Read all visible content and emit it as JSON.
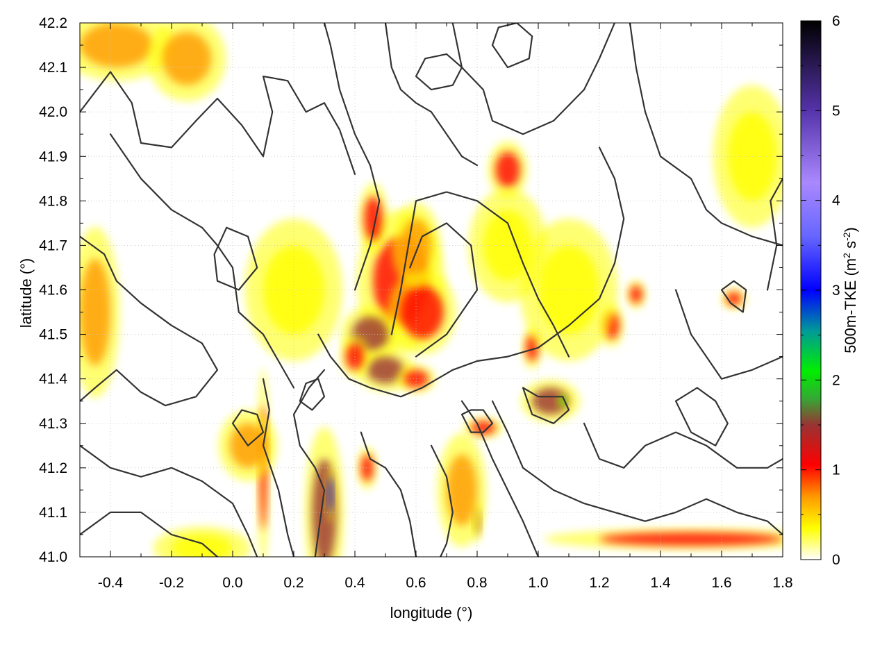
{
  "chart_data": {
    "type": "heatmap",
    "title": "",
    "xlabel": "longitude (°)",
    "ylabel": "latitude (°)",
    "xlim": [
      -0.5,
      1.8
    ],
    "ylim": [
      41.0,
      42.2
    ],
    "x_ticks": [
      -0.4,
      -0.2,
      0.0,
      0.2,
      0.4,
      0.6,
      0.8,
      1.0,
      1.2,
      1.4,
      1.6,
      1.8
    ],
    "x_tick_labels": [
      "-0.4",
      "-0.2",
      "0.0",
      "0.2",
      "0.4",
      "0.6",
      "0.8",
      "1.0",
      "1.2",
      "1.4",
      "1.6",
      "1.8"
    ],
    "y_ticks": [
      41.0,
      41.1,
      41.2,
      41.3,
      41.4,
      41.5,
      41.6,
      41.7,
      41.8,
      41.9,
      42.0,
      42.1,
      42.2
    ],
    "y_tick_labels": [
      "41.0",
      "41.1",
      "41.2",
      "41.3",
      "41.4",
      "41.5",
      "41.6",
      "41.7",
      "41.8",
      "41.9",
      "42.0",
      "42.1",
      "42.2"
    ],
    "grid": true,
    "colorbar": {
      "label": "500m-TKE (m² s⁻²)",
      "label_main": "500m-TKE (m",
      "label_sup1": "2",
      "label_mid": " s",
      "label_sup2": "-2",
      "label_end": ")",
      "range": [
        0,
        6
      ],
      "ticks": [
        0,
        1,
        2,
        3,
        4,
        5,
        6
      ],
      "tick_labels": [
        "0",
        "1",
        "2",
        "3",
        "4",
        "5",
        "6"
      ],
      "color_stops": [
        {
          "value": 0.0,
          "color": "#ffffff"
        },
        {
          "value": 0.35,
          "color": "#ffff00"
        },
        {
          "value": 0.7,
          "color": "#ff9900"
        },
        {
          "value": 1.05,
          "color": "#ff0000"
        },
        {
          "value": 1.5,
          "color": "#993333"
        },
        {
          "value": 1.8,
          "color": "#33aa33"
        },
        {
          "value": 2.1,
          "color": "#00ee00"
        },
        {
          "value": 2.55,
          "color": "#009999"
        },
        {
          "value": 3.0,
          "color": "#0000ff"
        },
        {
          "value": 3.6,
          "color": "#6666ff"
        },
        {
          "value": 4.2,
          "color": "#aa88ff"
        },
        {
          "value": 5.0,
          "color": "#5533aa"
        },
        {
          "value": 6.0,
          "color": "#000000"
        }
      ]
    },
    "hotspots": [
      {
        "lon": 0.55,
        "lat": 41.62,
        "tke": 1.0,
        "rx": 0.09,
        "ry": 0.1
      },
      {
        "lon": 0.62,
        "lat": 41.55,
        "tke": 0.9,
        "rx": 0.07,
        "ry": 0.06
      },
      {
        "lon": 0.45,
        "lat": 41.5,
        "tke": 1.1,
        "rx": 0.06,
        "ry": 0.04
      },
      {
        "lon": 0.5,
        "lat": 41.42,
        "tke": 1.2,
        "rx": 0.06,
        "ry": 0.03
      },
      {
        "lon": 0.6,
        "lat": 41.4,
        "tke": 1.0,
        "rx": 0.04,
        "ry": 0.02
      },
      {
        "lon": 0.4,
        "lat": 41.45,
        "tke": 1.0,
        "rx": 0.03,
        "ry": 0.03
      },
      {
        "lon": 0.3,
        "lat": 41.1,
        "tke": 1.4,
        "rx": 0.04,
        "ry": 0.12
      },
      {
        "lon": 0.32,
        "lat": 41.14,
        "tke": 3.0,
        "rx": 0.008,
        "ry": 0.04
      },
      {
        "lon": 0.1,
        "lat": 41.2,
        "tke": 1.0,
        "rx": 0.012,
        "ry": 0.14
      },
      {
        "lon": 0.44,
        "lat": 41.2,
        "tke": 0.9,
        "rx": 0.02,
        "ry": 0.03
      },
      {
        "lon": 1.04,
        "lat": 41.35,
        "tke": 1.3,
        "rx": 0.06,
        "ry": 0.03
      },
      {
        "lon": 1.08,
        "lat": 41.35,
        "tke": 1.9,
        "rx": 0.01,
        "ry": 0.01
      },
      {
        "lon": 0.98,
        "lat": 41.47,
        "tke": 1.0,
        "rx": 0.02,
        "ry": 0.03
      },
      {
        "lon": 1.24,
        "lat": 41.52,
        "tke": 1.0,
        "rx": 0.025,
        "ry": 0.03
      },
      {
        "lon": 1.32,
        "lat": 41.59,
        "tke": 1.0,
        "rx": 0.02,
        "ry": 0.02
      },
      {
        "lon": 1.64,
        "lat": 41.58,
        "tke": 1.0,
        "rx": 0.025,
        "ry": 0.015
      },
      {
        "lon": 0.82,
        "lat": 41.29,
        "tke": 1.0,
        "rx": 0.04,
        "ry": 0.015
      },
      {
        "lon": 0.8,
        "lat": 41.08,
        "tke": 1.2,
        "rx": 0.01,
        "ry": 0.03
      },
      {
        "lon": 0.9,
        "lat": 41.87,
        "tke": 1.0,
        "rx": 0.04,
        "ry": 0.04
      },
      {
        "lon": 0.46,
        "lat": 41.76,
        "tke": 0.8,
        "rx": 0.03,
        "ry": 0.05
      },
      {
        "lon": 0.6,
        "lat": 41.7,
        "tke": 0.7,
        "rx": 0.05,
        "ry": 0.06
      },
      {
        "lon": 1.5,
        "lat": 41.04,
        "tke": 0.9,
        "rx": 0.3,
        "ry": 0.015
      },
      {
        "lon": -0.38,
        "lat": 42.15,
        "tke": 0.5,
        "rx": 0.12,
        "ry": 0.05
      },
      {
        "lon": -0.15,
        "lat": 42.12,
        "tke": 0.4,
        "rx": 0.08,
        "ry": 0.06
      },
      {
        "lon": -0.45,
        "lat": 41.55,
        "tke": 0.4,
        "rx": 0.05,
        "ry": 0.12
      },
      {
        "lon": 0.05,
        "lat": 41.25,
        "tke": 0.6,
        "rx": 0.06,
        "ry": 0.05
      },
      {
        "lon": -0.1,
        "lat": 41.02,
        "tke": 0.35,
        "rx": 0.1,
        "ry": 0.03
      },
      {
        "lon": 1.1,
        "lat": 41.6,
        "tke": 0.35,
        "rx": 0.1,
        "ry": 0.1
      },
      {
        "lon": 0.75,
        "lat": 41.15,
        "tke": 0.4,
        "rx": 0.05,
        "ry": 0.08
      },
      {
        "lon": 0.2,
        "lat": 41.6,
        "tke": 0.3,
        "rx": 0.1,
        "ry": 0.1
      },
      {
        "lon": 1.7,
        "lat": 41.9,
        "tke": 0.3,
        "rx": 0.08,
        "ry": 0.1
      },
      {
        "lon": 0.9,
        "lat": 41.7,
        "tke": 0.35,
        "rx": 0.08,
        "ry": 0.08
      }
    ],
    "contours": [
      [
        [
          -0.5,
          42.0
        ],
        [
          -0.4,
          42.09
        ],
        [
          -0.33,
          42.02
        ],
        [
          -0.3,
          41.93
        ],
        [
          -0.2,
          41.92
        ],
        [
          -0.12,
          41.98
        ],
        [
          -0.05,
          42.03
        ],
        [
          0.03,
          41.97
        ],
        [
          0.1,
          41.9
        ],
        [
          0.13,
          42.0
        ],
        [
          0.1,
          42.08
        ],
        [
          0.18,
          42.07
        ],
        [
          0.24,
          42.0
        ],
        [
          0.3,
          42.02
        ],
        [
          0.35,
          41.96
        ],
        [
          0.4,
          41.86
        ]
      ],
      [
        [
          -0.4,
          41.95
        ],
        [
          -0.3,
          41.85
        ],
        [
          -0.2,
          41.78
        ],
        [
          -0.1,
          41.74
        ],
        [
          -0.05,
          41.7
        ],
        [
          0.0,
          41.65
        ],
        [
          0.02,
          41.55
        ],
        [
          0.1,
          41.5
        ],
        [
          0.15,
          41.44
        ],
        [
          0.2,
          41.38
        ]
      ],
      [
        [
          -0.5,
          41.72
        ],
        [
          -0.42,
          41.68
        ],
        [
          -0.38,
          41.62
        ],
        [
          -0.3,
          41.57
        ],
        [
          -0.2,
          41.52
        ],
        [
          -0.1,
          41.48
        ],
        [
          -0.05,
          41.42
        ],
        [
          -0.12,
          41.36
        ],
        [
          -0.22,
          41.34
        ],
        [
          -0.3,
          41.37
        ],
        [
          -0.38,
          41.42
        ],
        [
          -0.45,
          41.38
        ],
        [
          -0.5,
          41.35
        ]
      ],
      [
        [
          -0.5,
          41.25
        ],
        [
          -0.4,
          41.2
        ],
        [
          -0.3,
          41.18
        ],
        [
          -0.2,
          41.2
        ],
        [
          -0.1,
          41.17
        ],
        [
          0.0,
          41.12
        ],
        [
          0.05,
          41.05
        ],
        [
          0.08,
          41.0
        ]
      ],
      [
        [
          -0.5,
          41.05
        ],
        [
          -0.4,
          41.1
        ],
        [
          -0.3,
          41.1
        ],
        [
          -0.2,
          41.05
        ],
        [
          -0.1,
          41.03
        ],
        [
          -0.05,
          41.0
        ]
      ],
      [
        [
          0.1,
          41.4
        ],
        [
          0.12,
          41.33
        ],
        [
          0.1,
          41.25
        ],
        [
          0.15,
          41.15
        ],
        [
          0.18,
          41.05
        ],
        [
          0.2,
          41.0
        ]
      ],
      [
        [
          0.3,
          41.42
        ],
        [
          0.25,
          41.38
        ],
        [
          0.2,
          41.32
        ],
        [
          0.22,
          41.25
        ],
        [
          0.27,
          41.2
        ],
        [
          0.3,
          41.15
        ],
        [
          0.28,
          41.05
        ],
        [
          0.27,
          41.0
        ]
      ],
      [
        [
          0.42,
          41.28
        ],
        [
          0.45,
          41.22
        ],
        [
          0.5,
          41.2
        ],
        [
          0.55,
          41.15
        ],
        [
          0.58,
          41.08
        ],
        [
          0.6,
          41.0
        ]
      ],
      [
        [
          0.28,
          41.5
        ],
        [
          0.32,
          41.45
        ],
        [
          0.38,
          41.4
        ],
        [
          0.45,
          41.38
        ],
        [
          0.55,
          41.36
        ],
        [
          0.62,
          41.38
        ],
        [
          0.72,
          41.42
        ],
        [
          0.8,
          41.44
        ],
        [
          0.9,
          41.45
        ],
        [
          1.0,
          41.47
        ],
        [
          1.1,
          41.52
        ],
        [
          1.2,
          41.58
        ],
        [
          1.25,
          41.66
        ],
        [
          1.28,
          41.76
        ],
        [
          1.25,
          41.85
        ],
        [
          1.2,
          41.92
        ]
      ],
      [
        [
          0.4,
          41.6
        ],
        [
          0.45,
          41.7
        ],
        [
          0.48,
          41.8
        ],
        [
          0.45,
          41.88
        ],
        [
          0.4,
          41.95
        ],
        [
          0.35,
          42.05
        ],
        [
          0.32,
          42.15
        ],
        [
          0.3,
          42.2
        ]
      ],
      [
        [
          0.52,
          41.5
        ],
        [
          0.55,
          41.6
        ],
        [
          0.58,
          41.72
        ],
        [
          0.6,
          41.8
        ],
        [
          0.7,
          41.82
        ],
        [
          0.8,
          41.8
        ],
        [
          0.9,
          41.75
        ],
        [
          0.95,
          41.66
        ],
        [
          1.0,
          41.58
        ],
        [
          1.05,
          41.52
        ],
        [
          1.1,
          41.45
        ]
      ],
      [
        [
          0.6,
          41.45
        ],
        [
          0.7,
          41.5
        ],
        [
          0.75,
          41.55
        ],
        [
          0.8,
          41.6
        ],
        [
          0.78,
          41.7
        ],
        [
          0.7,
          41.75
        ],
        [
          0.62,
          41.72
        ],
        [
          0.58,
          41.65
        ]
      ],
      [
        [
          0.72,
          42.2
        ],
        [
          0.75,
          42.1
        ],
        [
          0.82,
          42.05
        ],
        [
          0.85,
          41.98
        ],
        [
          0.95,
          41.95
        ],
        [
          1.05,
          41.98
        ],
        [
          1.15,
          42.05
        ],
        [
          1.2,
          42.12
        ],
        [
          1.25,
          42.2
        ]
      ],
      [
        [
          0.5,
          42.2
        ],
        [
          0.52,
          42.1
        ],
        [
          0.55,
          42.05
        ],
        [
          0.6,
          42.02
        ],
        [
          0.65,
          42.0
        ],
        [
          0.7,
          41.95
        ],
        [
          0.75,
          41.9
        ],
        [
          0.8,
          41.88
        ]
      ],
      [
        [
          1.3,
          42.2
        ],
        [
          1.32,
          42.1
        ],
        [
          1.35,
          42.0
        ],
        [
          1.4,
          41.9
        ],
        [
          1.5,
          41.85
        ],
        [
          1.55,
          41.78
        ],
        [
          1.6,
          41.75
        ],
        [
          1.7,
          41.72
        ],
        [
          1.8,
          41.7
        ]
      ],
      [
        [
          1.45,
          41.6
        ],
        [
          1.5,
          41.5
        ],
        [
          1.55,
          41.45
        ],
        [
          1.6,
          41.4
        ],
        [
          1.7,
          41.42
        ],
        [
          1.8,
          41.45
        ]
      ],
      [
        [
          0.75,
          41.35
        ],
        [
          0.8,
          41.3
        ],
        [
          0.85,
          41.22
        ],
        [
          0.9,
          41.15
        ],
        [
          0.95,
          41.08
        ],
        [
          1.0,
          41.0
        ]
      ],
      [
        [
          0.85,
          41.35
        ],
        [
          0.9,
          41.28
        ],
        [
          0.95,
          41.2
        ],
        [
          1.05,
          41.15
        ],
        [
          1.15,
          41.12
        ],
        [
          1.25,
          41.1
        ],
        [
          1.35,
          41.08
        ],
        [
          1.45,
          41.1
        ],
        [
          1.55,
          41.13
        ],
        [
          1.65,
          41.1
        ],
        [
          1.75,
          41.08
        ],
        [
          1.8,
          41.05
        ]
      ],
      [
        [
          0.65,
          41.25
        ],
        [
          0.7,
          41.18
        ],
        [
          0.72,
          41.1
        ],
        [
          0.7,
          41.03
        ],
        [
          0.68,
          41.0
        ]
      ],
      [
        [
          1.15,
          41.3
        ],
        [
          1.2,
          41.22
        ],
        [
          1.28,
          41.2
        ],
        [
          1.35,
          41.25
        ],
        [
          1.45,
          41.28
        ],
        [
          1.55,
          41.25
        ],
        [
          1.65,
          41.2
        ],
        [
          1.75,
          41.2
        ],
        [
          1.8,
          41.22
        ]
      ],
      [
        [
          1.45,
          41.35
        ],
        [
          1.52,
          41.38
        ],
        [
          1.58,
          41.35
        ],
        [
          1.62,
          41.3
        ],
        [
          1.58,
          41.25
        ],
        [
          1.5,
          41.28
        ],
        [
          1.45,
          41.35
        ]
      ],
      [
        [
          0.75,
          41.32
        ],
        [
          0.78,
          41.28
        ],
        [
          0.82,
          41.28
        ],
        [
          0.85,
          41.3
        ],
        [
          0.82,
          41.33
        ],
        [
          0.78,
          41.33
        ],
        [
          0.75,
          41.32
        ]
      ],
      [
        [
          0.95,
          41.38
        ],
        [
          1.0,
          41.36
        ],
        [
          1.08,
          41.36
        ],
        [
          1.1,
          41.33
        ],
        [
          1.05,
          41.3
        ],
        [
          0.98,
          41.32
        ],
        [
          0.95,
          41.38
        ]
      ],
      [
        [
          1.6,
          41.6
        ],
        [
          1.63,
          41.57
        ],
        [
          1.67,
          41.55
        ],
        [
          1.68,
          41.6
        ],
        [
          1.64,
          41.62
        ],
        [
          1.6,
          41.6
        ]
      ],
      [
        [
          0.0,
          41.3
        ],
        [
          0.05,
          41.25
        ],
        [
          0.1,
          41.28
        ],
        [
          0.08,
          41.32
        ],
        [
          0.03,
          41.33
        ],
        [
          0.0,
          41.3
        ]
      ],
      [
        [
          0.22,
          41.35
        ],
        [
          0.26,
          41.33
        ],
        [
          0.3,
          41.36
        ],
        [
          0.28,
          41.4
        ],
        [
          0.24,
          41.39
        ],
        [
          0.22,
          41.35
        ]
      ],
      [
        [
          0.6,
          42.08
        ],
        [
          0.65,
          42.05
        ],
        [
          0.72,
          42.06
        ],
        [
          0.75,
          42.1
        ],
        [
          0.7,
          42.13
        ],
        [
          0.63,
          42.12
        ],
        [
          0.6,
          42.08
        ]
      ],
      [
        [
          0.85,
          42.15
        ],
        [
          0.9,
          42.1
        ],
        [
          0.97,
          42.12
        ],
        [
          0.98,
          42.17
        ],
        [
          0.93,
          42.2
        ],
        [
          0.87,
          42.19
        ],
        [
          0.85,
          42.15
        ]
      ],
      [
        [
          1.75,
          41.6
        ],
        [
          1.78,
          41.7
        ],
        [
          1.76,
          41.8
        ],
        [
          1.8,
          41.85
        ]
      ],
      [
        [
          -0.05,
          41.62
        ],
        [
          0.02,
          41.6
        ],
        [
          0.08,
          41.65
        ],
        [
          0.05,
          41.72
        ],
        [
          -0.02,
          41.74
        ],
        [
          -0.06,
          41.68
        ],
        [
          -0.05,
          41.62
        ]
      ]
    ]
  }
}
